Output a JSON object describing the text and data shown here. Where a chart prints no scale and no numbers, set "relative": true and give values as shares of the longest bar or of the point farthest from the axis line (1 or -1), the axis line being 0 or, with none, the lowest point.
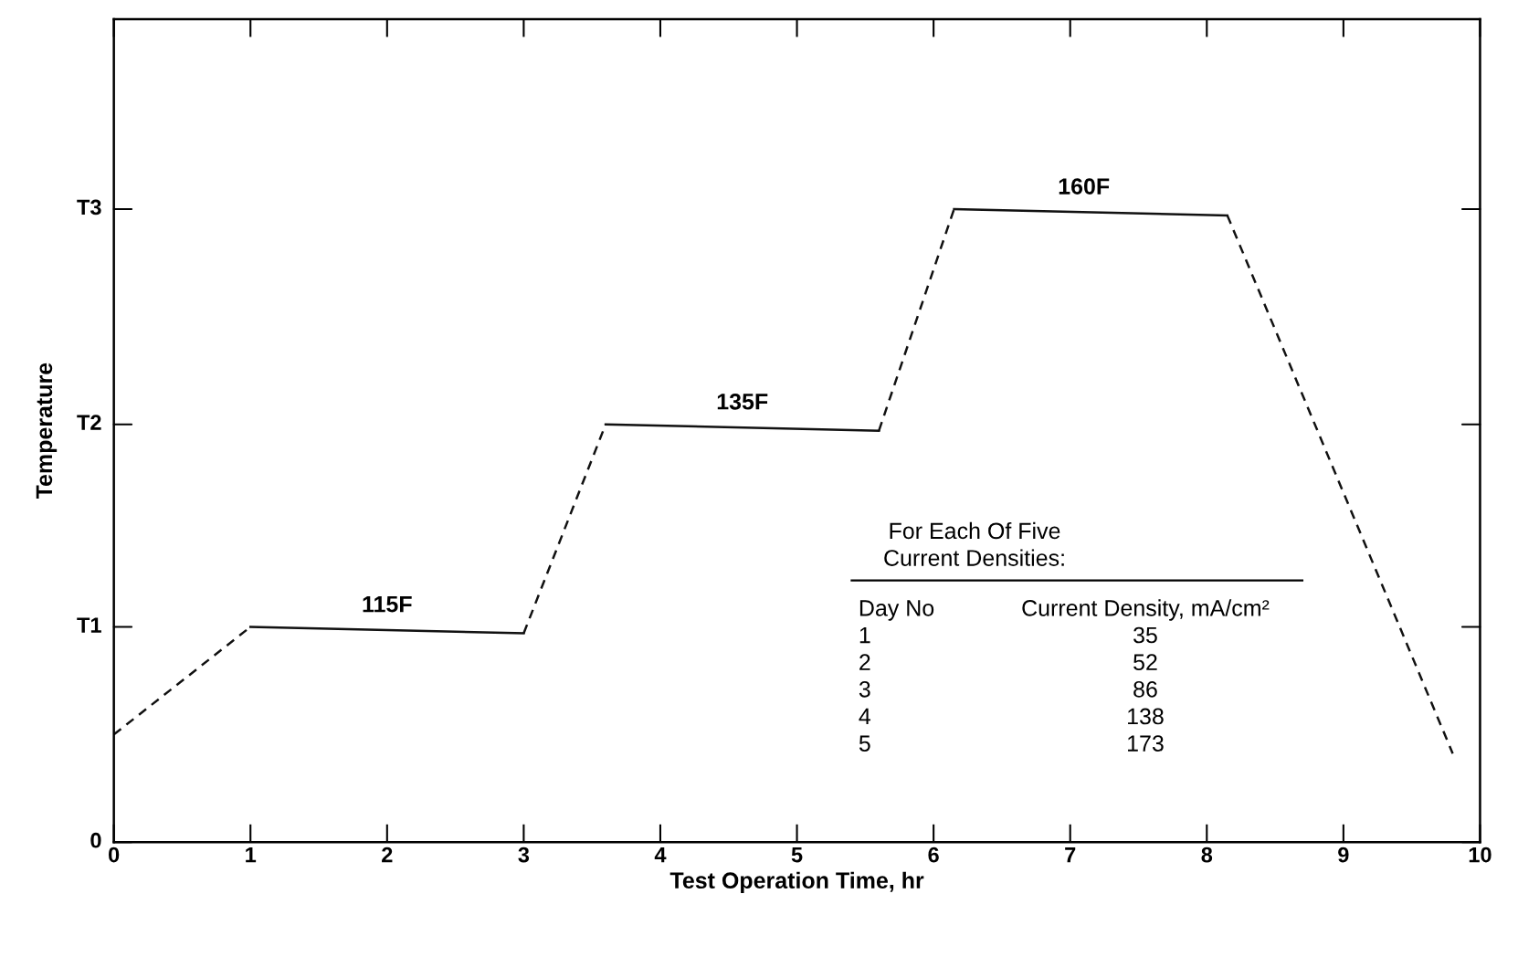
{
  "chart_data": {
    "type": "line",
    "xlabel": "Test Operation Time, hr",
    "ylabel": "Temperature",
    "xlim": [
      0,
      10
    ],
    "xticks": [
      0,
      1,
      2,
      3,
      4,
      5,
      6,
      7,
      8,
      9,
      10
    ],
    "relative": true,
    "grid": false,
    "legend": false,
    "marker": "none",
    "series": [
      {
        "color": "#111111",
        "line_style": "dashed",
        "x": [
          0,
          1
        ],
        "values": [
          0.17,
          0.34
        ]
      },
      {
        "color": "#111111",
        "line_style": "solid",
        "x": [
          1,
          3
        ],
        "values": [
          0.34,
          0.33
        ]
      },
      {
        "color": "#111111",
        "line_style": "dashed",
        "x": [
          3,
          3.6
        ],
        "values": [
          0.33,
          0.66
        ]
      },
      {
        "color": "#111111",
        "line_style": "solid",
        "x": [
          3.6,
          5.6
        ],
        "values": [
          0.66,
          0.65
        ]
      },
      {
        "color": "#111111",
        "line_style": "dashed",
        "x": [
          5.6,
          6.15
        ],
        "values": [
          0.65,
          1.0
        ]
      },
      {
        "color": "#111111",
        "line_style": "solid",
        "x": [
          6.15,
          8.15
        ],
        "values": [
          1.0,
          0.99
        ]
      },
      {
        "color": "#111111",
        "line_style": "dashed",
        "x": [
          8.15,
          9.8
        ],
        "values": [
          0.99,
          0.14
        ]
      }
    ],
    "annotations": [
      {
        "text": "115F",
        "x": 2.0,
        "y": 0.34
      },
      {
        "text": "135F",
        "x": 4.6,
        "y": 0.66
      },
      {
        "text": "160F",
        "x": 7.1,
        "y": 1.0
      },
      "0",
      "T1",
      "T2",
      "T3",
      "For Each Of Five\nCurrent Densities:",
      "Day No\n1\n2\n3\n4\n5",
      "Current Density, mA/cm²\n35\n52\n86\n138\n173"
    ]
  }
}
